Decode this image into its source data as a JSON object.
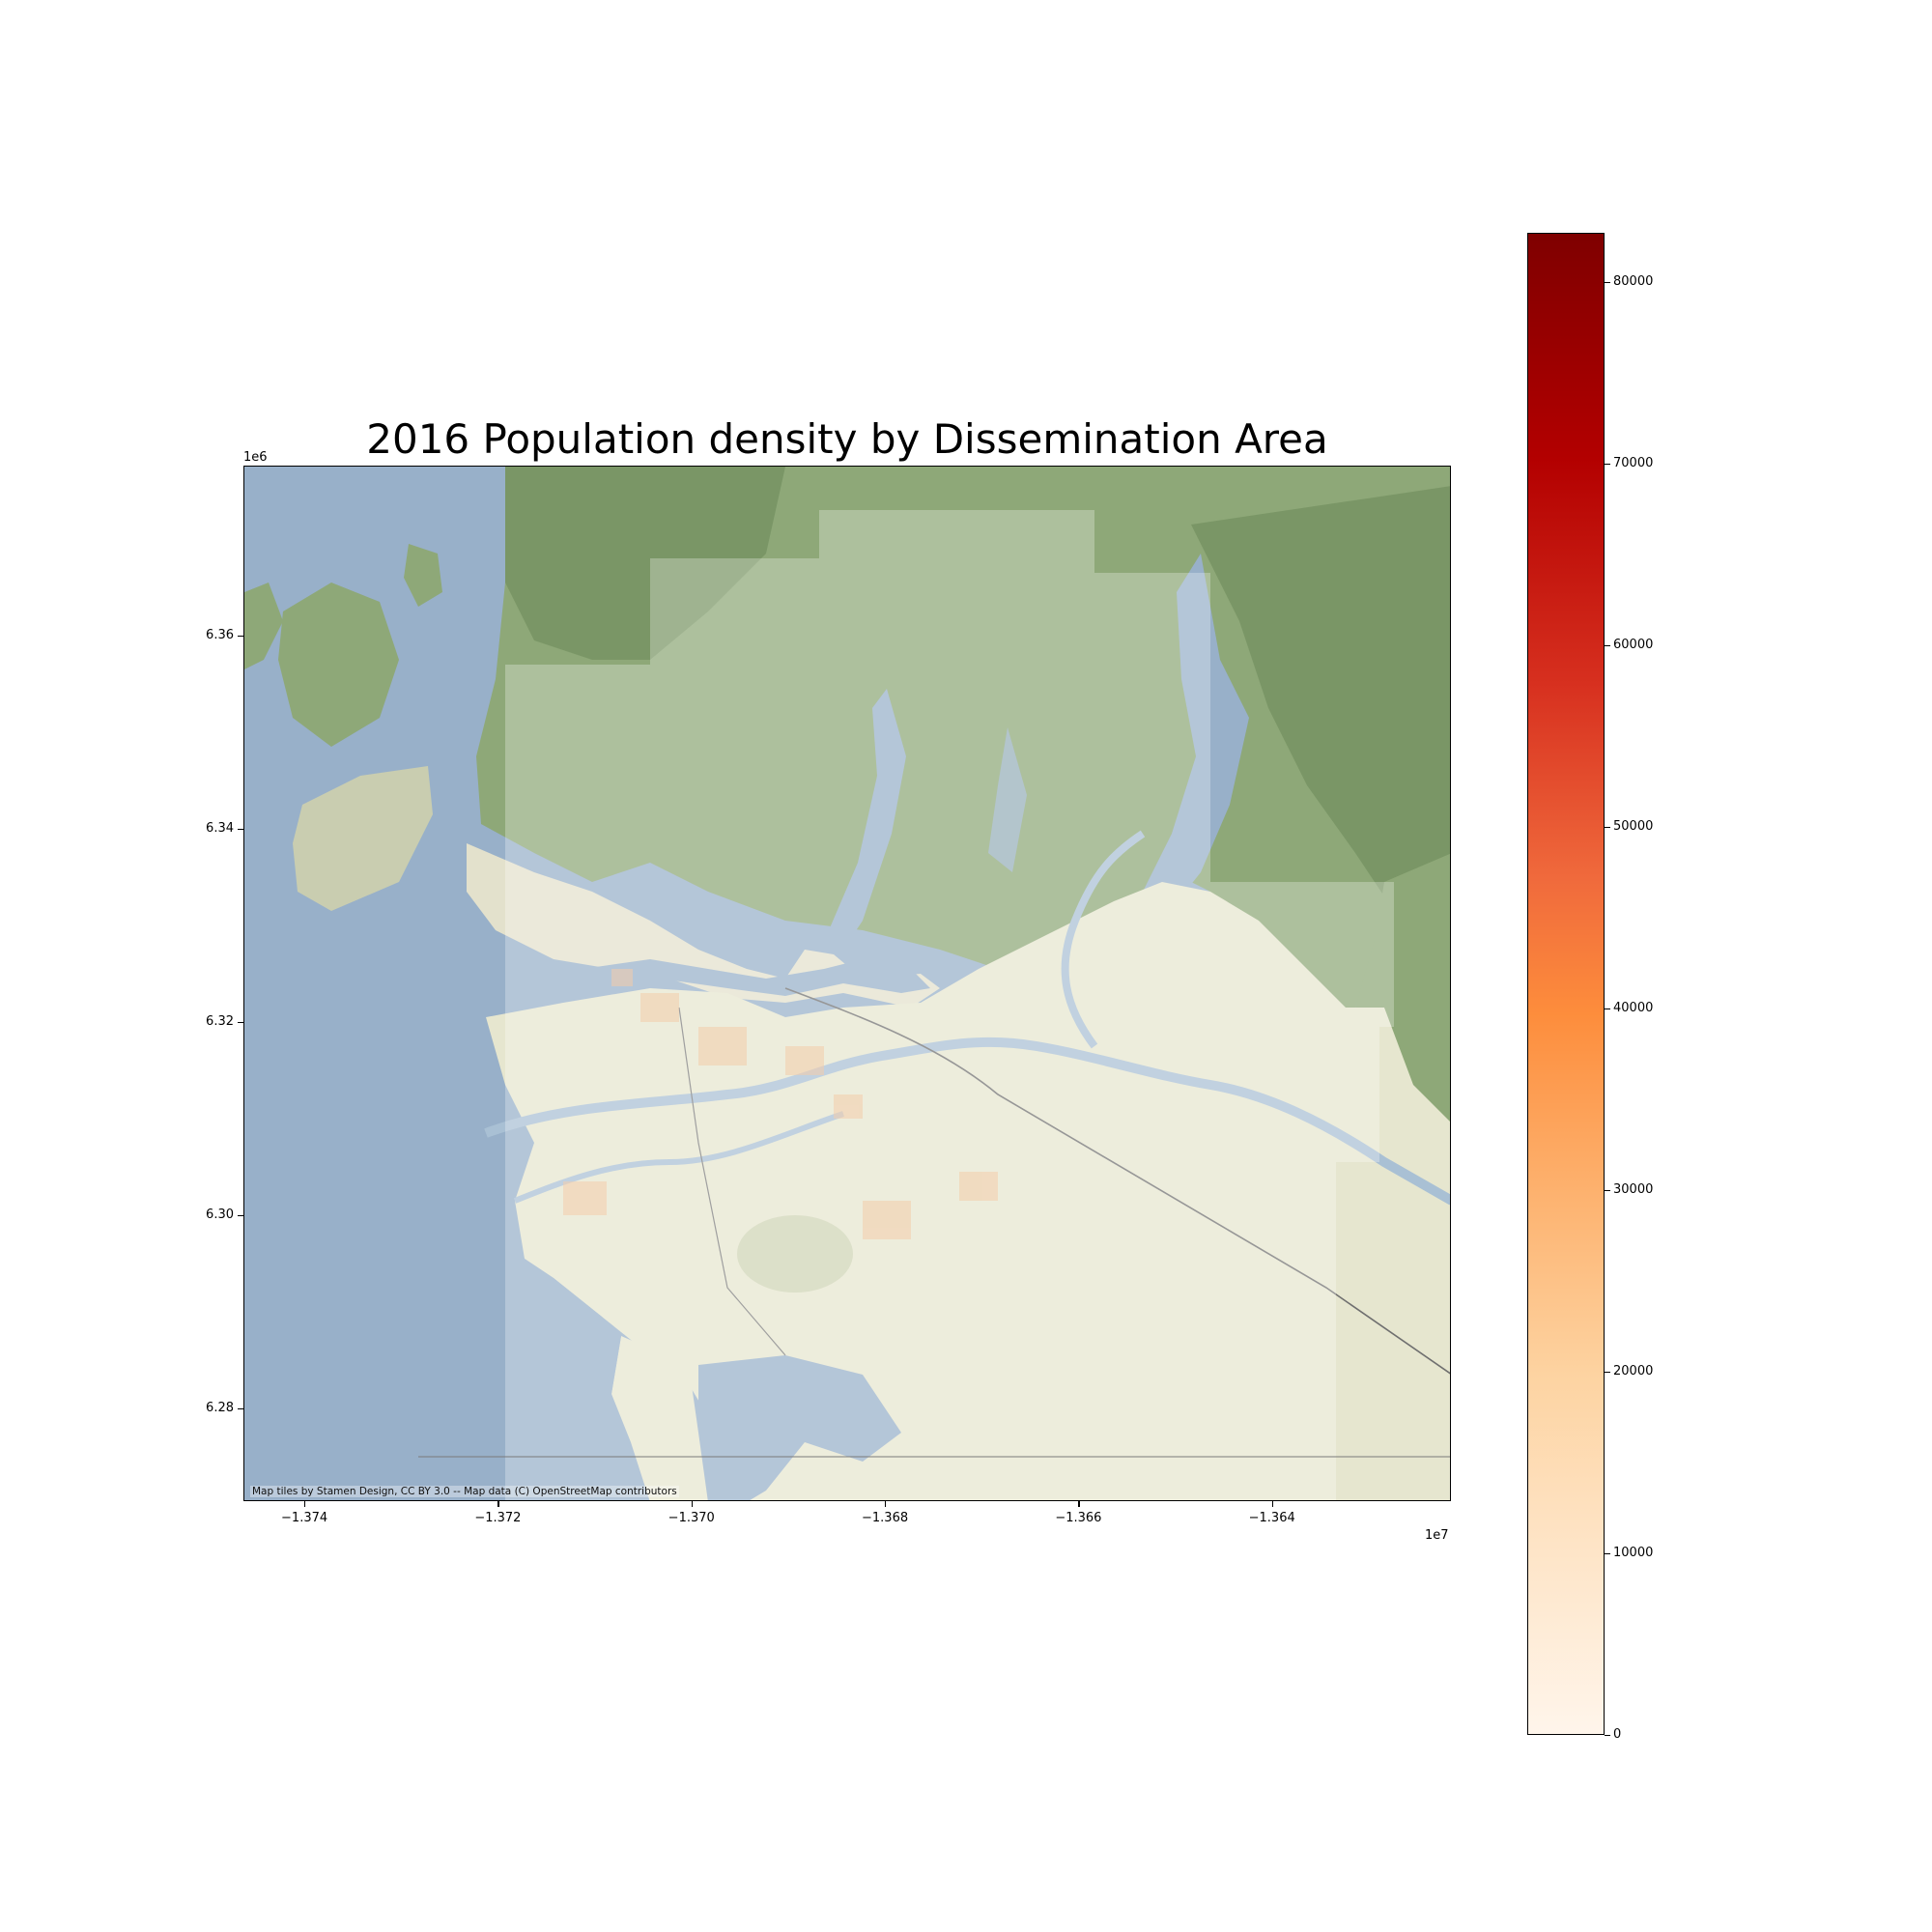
{
  "figure": {
    "title": "2016 Population density by Dissemination Area"
  },
  "map": {
    "attribution": "Map tiles by Stamen Design, CC BY 3.0 -- Map data (C) OpenStreetMap contributors",
    "x_ticks": [
      "−1.374",
      "−1.372",
      "−1.370",
      "−1.368",
      "−1.366",
      "−1.364"
    ],
    "x_offset": "1e7",
    "y_ticks": [
      "6.36",
      "6.34",
      "6.32",
      "6.30",
      "6.28"
    ],
    "y_offset": "1e6",
    "colors": {
      "water": "#98b0c9",
      "land_light": "#e6e6cf",
      "forest": "#8ea878",
      "forest_dark": "#6c8a5a"
    }
  },
  "colorbar": {
    "colormap": "OrRd",
    "min": 0,
    "max": 82700,
    "ticks": [
      "0",
      "10000",
      "20000",
      "30000",
      "40000",
      "50000",
      "60000",
      "70000",
      "80000"
    ]
  },
  "chart_data": {
    "type": "heatmap",
    "title": "2016 Population density by Dissemination Area",
    "x_ticks": [
      -1.374,
      -1.372,
      -1.37,
      -1.368,
      -1.366,
      -1.364
    ],
    "x_scale_factor": "1e7",
    "y_ticks": [
      6.36,
      6.34,
      6.32,
      6.3,
      6.28
    ],
    "y_scale_factor": "1e6",
    "colorbar_ticks": [
      0,
      10000,
      20000,
      30000,
      40000,
      50000,
      60000,
      70000,
      80000
    ],
    "colorbar_range": [
      0,
      82700
    ],
    "colormap": "OrRd"
  }
}
